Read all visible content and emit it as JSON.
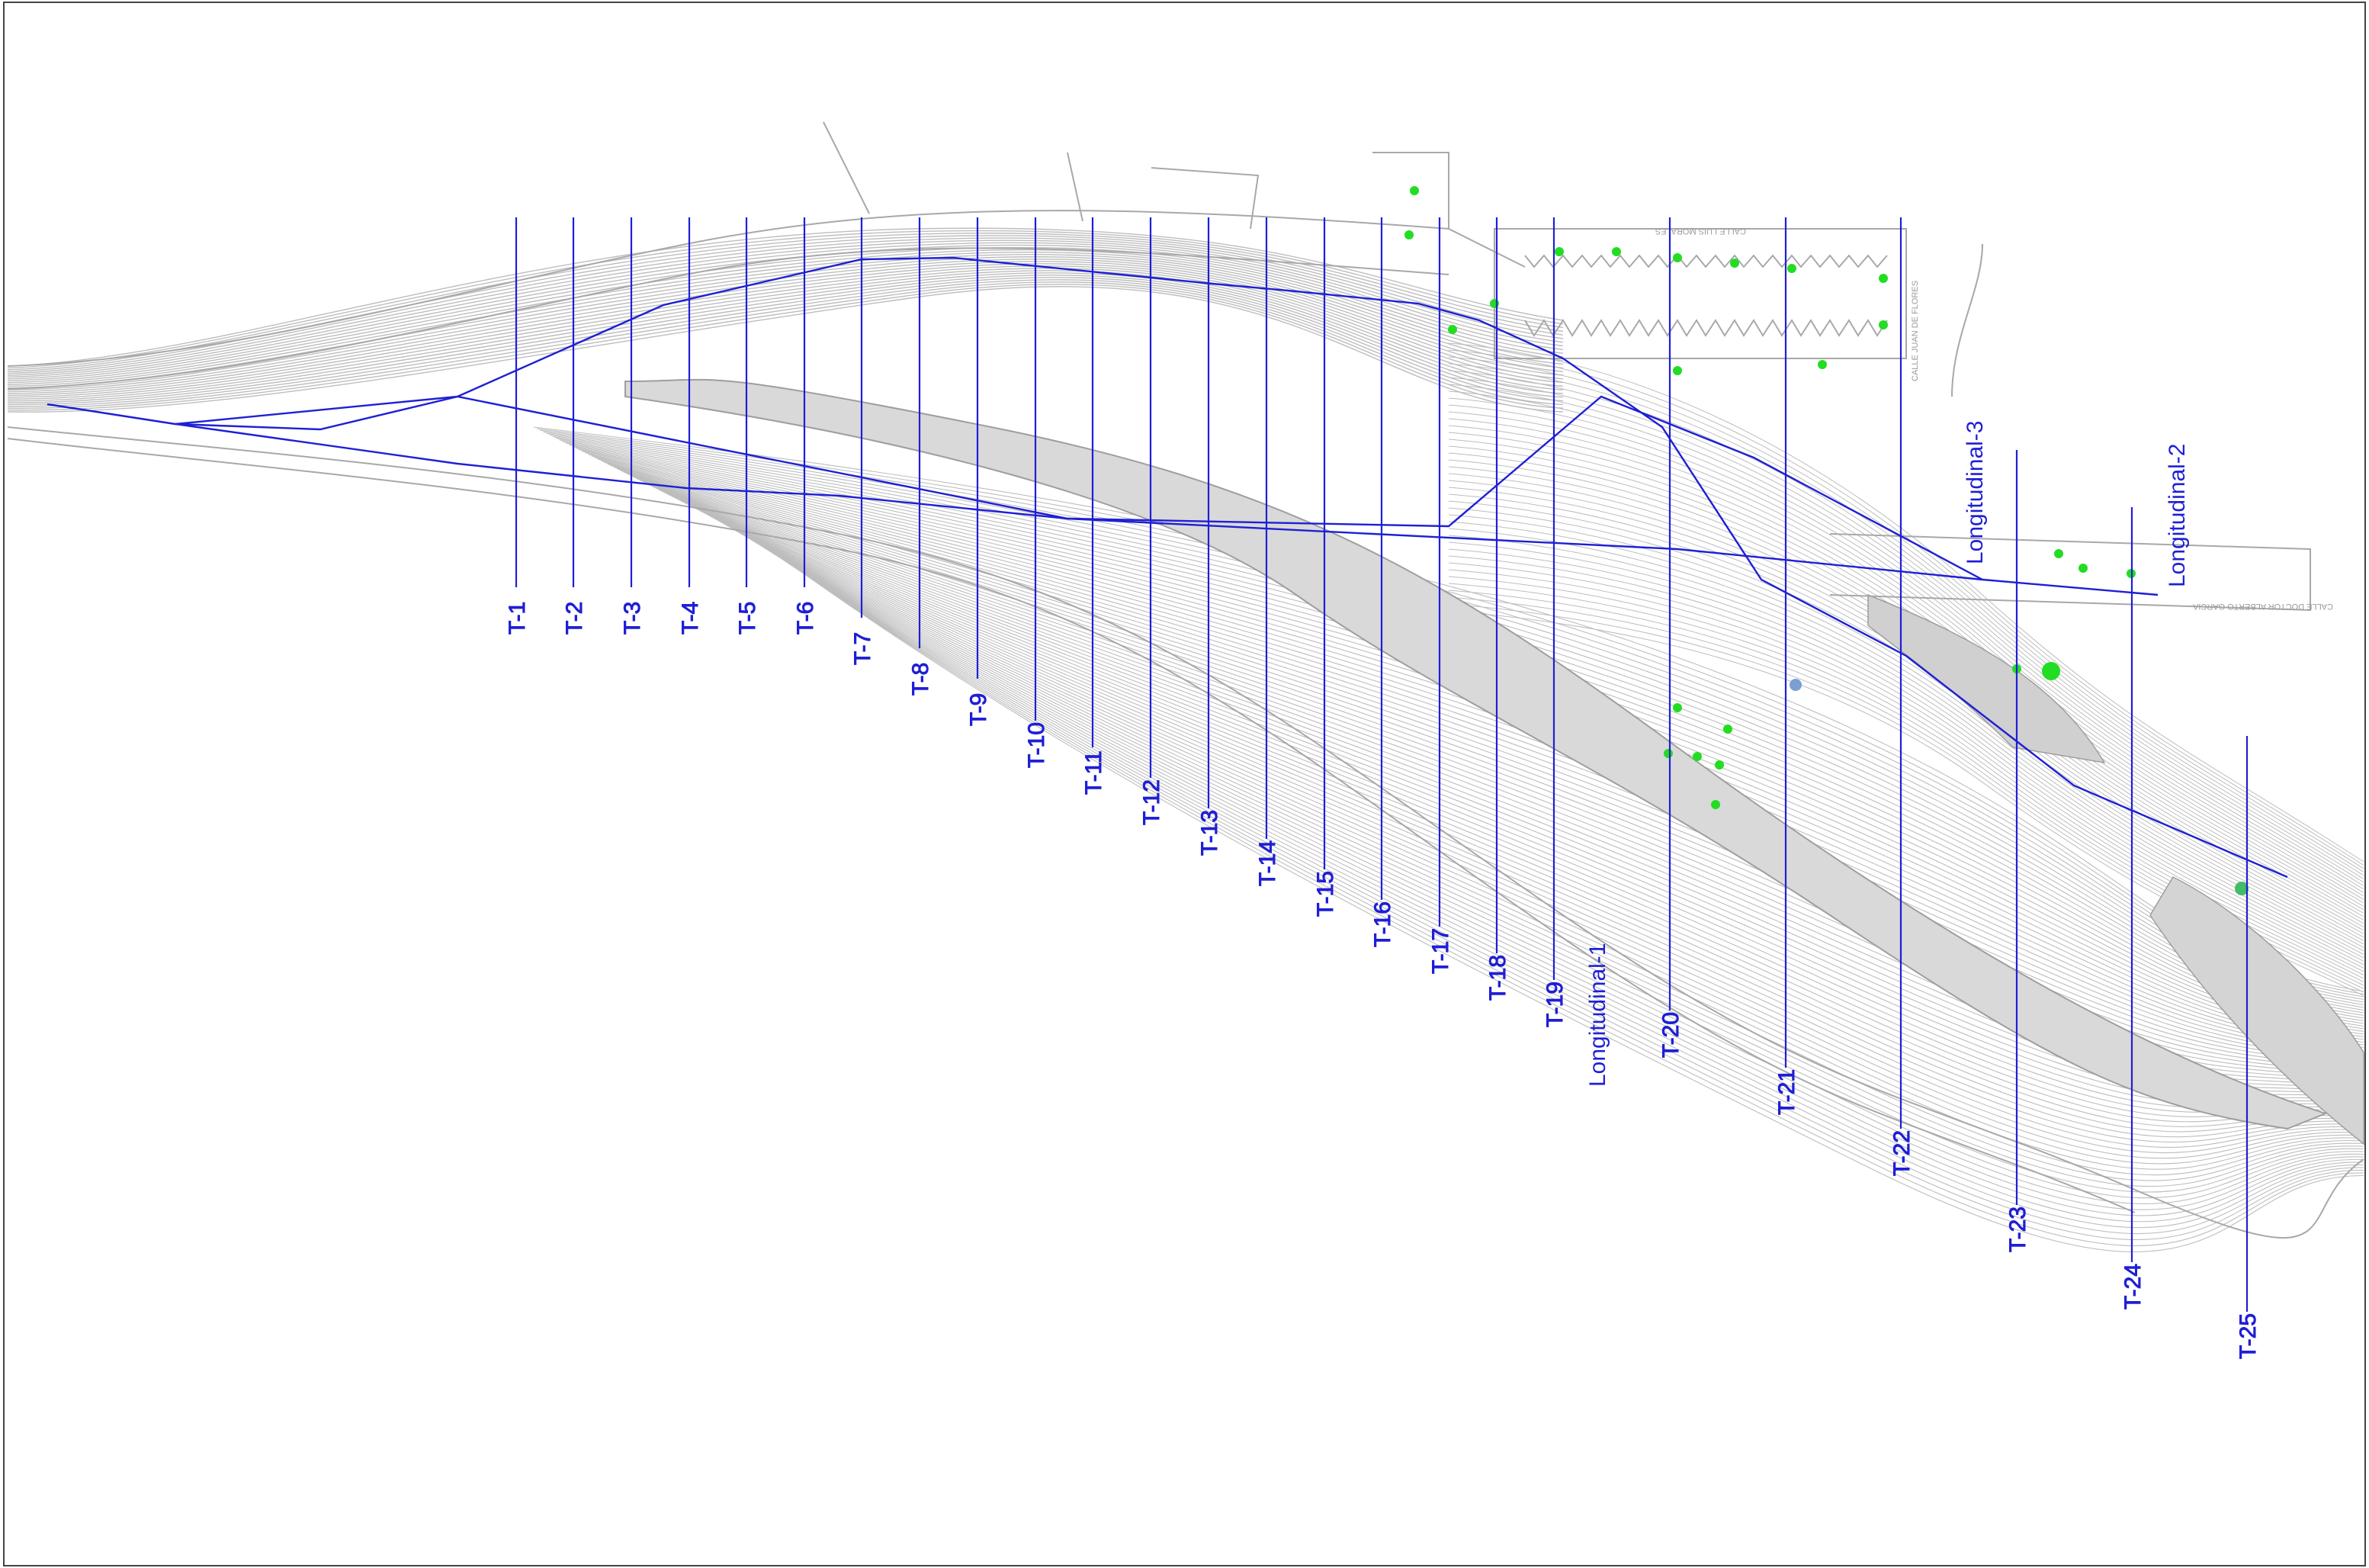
{
  "drawing": {
    "colors": {
      "section_line": "#1f1fd6",
      "topo": "#bdbdbd",
      "topo_dark": "#9e9e9e",
      "marker_green": "#22dd22",
      "background": "#ffffff",
      "frame": "#444444"
    }
  },
  "street_names": [
    "CALLE LUIS MORALES",
    "CALLE DOCTOR ALBERTO GARCIA",
    "CALLE JUAN DE FLORES"
  ],
  "transversal_sections": [
    {
      "label": "T-1"
    },
    {
      "label": "T-2"
    },
    {
      "label": "T-3"
    },
    {
      "label": "T-4"
    },
    {
      "label": "T-5"
    },
    {
      "label": "T-6"
    },
    {
      "label": "T-7"
    },
    {
      "label": "T-8"
    },
    {
      "label": "T-9"
    },
    {
      "label": "T-10"
    },
    {
      "label": "T-11"
    },
    {
      "label": "T-12"
    },
    {
      "label": "T-13"
    },
    {
      "label": "T-14"
    },
    {
      "label": "T-15"
    },
    {
      "label": "T-16"
    },
    {
      "label": "T-17"
    },
    {
      "label": "T-18"
    },
    {
      "label": "T-19"
    },
    {
      "label": "T-20"
    },
    {
      "label": "T-21"
    },
    {
      "label": "T-22"
    },
    {
      "label": "T-23"
    },
    {
      "label": "T-24"
    },
    {
      "label": "T-25"
    }
  ],
  "longitudinal_sections": [
    {
      "label": "Longitudinal-1"
    },
    {
      "label": "Longitudinal-2"
    },
    {
      "label": "Longitudinal-3"
    }
  ]
}
